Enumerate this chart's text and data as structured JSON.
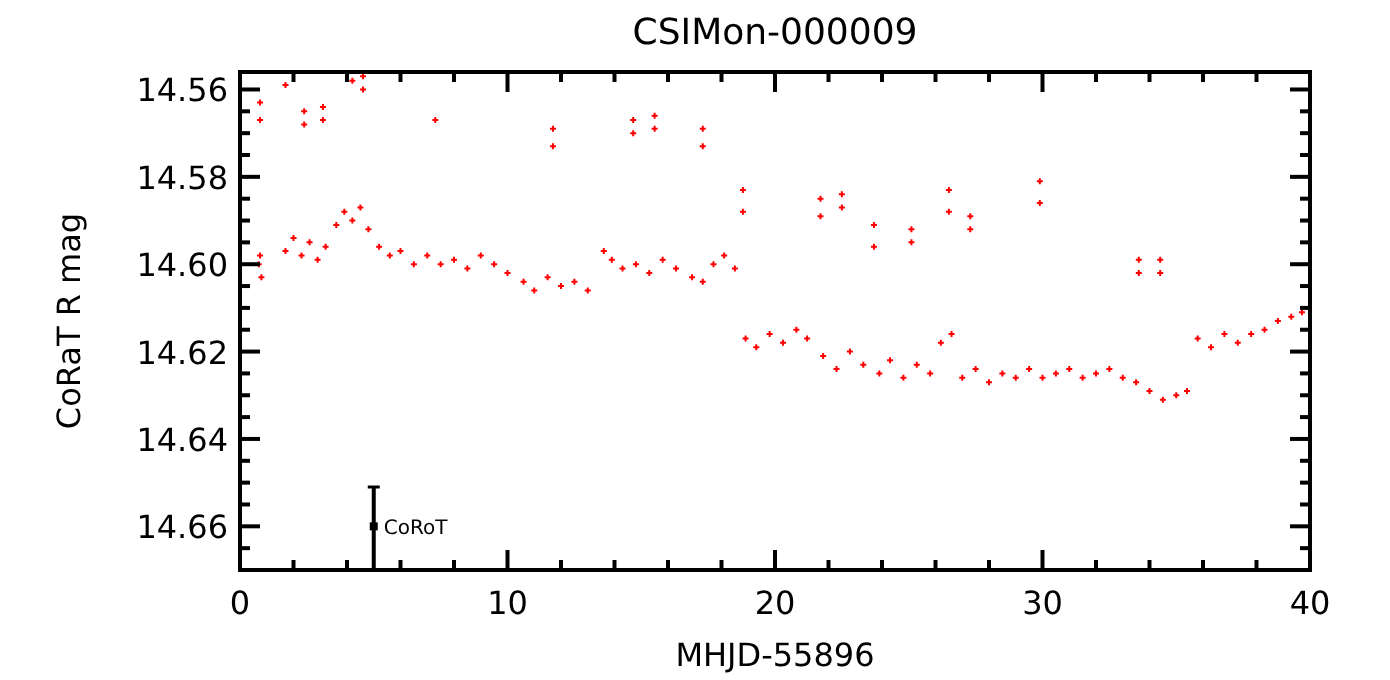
{
  "chart_data": {
    "type": "scatter",
    "title": "CSIMon-000009",
    "xlabel": "MHJD-55896",
    "ylabel": "CoRaT R mag",
    "xlim": [
      0,
      40
    ],
    "xticks": [
      0,
      {
        "value": 2,
        "label": null
      },
      {
        "value": 4,
        "label": null
      },
      {
        "value": 6,
        "label": null
      },
      {
        "value": 8,
        "label": null
      },
      10,
      {
        "value": 12,
        "label": null
      },
      {
        "value": 14,
        "label": null
      },
      {
        "value": 16,
        "label": null
      },
      {
        "value": 18,
        "label": null
      },
      20,
      {
        "value": 22,
        "label": null
      },
      {
        "value": 24,
        "label": null
      },
      {
        "value": 26,
        "label": null
      },
      {
        "value": 28,
        "label": null
      },
      30,
      {
        "value": 32,
        "label": null
      },
      {
        "value": 34,
        "label": null
      },
      {
        "value": 36,
        "label": null
      },
      {
        "value": 38,
        "label": null
      },
      40
    ],
    "ylim": [
      14.67,
      14.556
    ],
    "yticks": [
      14.56,
      {
        "value": 14.565,
        "label": null
      },
      {
        "value": 14.57,
        "label": null
      },
      {
        "value": 14.575,
        "label": null
      },
      14.58,
      {
        "value": 14.585,
        "label": null
      },
      {
        "value": 14.59,
        "label": null
      },
      {
        "value": 14.595,
        "label": null
      },
      {
        "value": 14.6,
        "label": "14.60"
      },
      {
        "value": 14.605,
        "label": null
      },
      {
        "value": 14.61,
        "label": null
      },
      {
        "value": 14.615,
        "label": null
      },
      14.62,
      {
        "value": 14.625,
        "label": null
      },
      {
        "value": 14.63,
        "label": null
      },
      {
        "value": 14.635,
        "label": null
      },
      14.64,
      {
        "value": 14.645,
        "label": null
      },
      {
        "value": 14.65,
        "label": null
      },
      {
        "value": 14.655,
        "label": null
      },
      14.66,
      {
        "value": 14.665,
        "label": null
      }
    ],
    "grid": false,
    "annotations": [
      {
        "text": "CoRoT",
        "x": 5,
        "y": 14.66
      }
    ],
    "series": [
      {
        "color": "#ff0000",
        "marker": "cross",
        "x": [
          0.7,
          0.8,
          0.75,
          1.7,
          2.0,
          2.3,
          2.6,
          2.9,
          3.2,
          3.6,
          3.9,
          4.2,
          4.5,
          4.8,
          5.2,
          5.6,
          6.0,
          6.5,
          7.0,
          7.5,
          8.0,
          8.5,
          9.0,
          9.5,
          10.0,
          10.6,
          11.0,
          11.5,
          12.0,
          12.5,
          13.0,
          13.6,
          13.9,
          14.3,
          14.8,
          15.3,
          15.8,
          16.3,
          16.9,
          17.3,
          17.7,
          18.1,
          18.5,
          18.9,
          19.3,
          19.8,
          20.3,
          20.8,
          21.2,
          21.8,
          22.3,
          22.8,
          23.3,
          23.9,
          24.3,
          24.8,
          25.3,
          25.8,
          26.2,
          26.6,
          27.0,
          27.5,
          28.0,
          28.5,
          29.0,
          29.5,
          30.0,
          30.5,
          31.0,
          31.5,
          32.0,
          32.5,
          33.0,
          33.5,
          34.0,
          34.5,
          35.0,
          35.4,
          35.8,
          36.3,
          36.8,
          37.3,
          37.8,
          38.3,
          38.8,
          39.3,
          39.7,
          0.75,
          0.75,
          1.7,
          2.4,
          2.4,
          3.1,
          3.1,
          4.2,
          4.6,
          4.6,
          7.3,
          11.7,
          11.7,
          14.7,
          14.7,
          15.5,
          15.5,
          17.3,
          17.3,
          18.8,
          18.8,
          21.7,
          21.7,
          22.5,
          22.5,
          23.7,
          23.7,
          25.1,
          25.1,
          26.5,
          26.5,
          27.3,
          27.3,
          29.9,
          29.9,
          33.6,
          33.6,
          34.4,
          34.4
        ],
        "values": [
          14.6,
          14.603,
          14.598,
          14.597,
          14.594,
          14.598,
          14.595,
          14.599,
          14.596,
          14.591,
          14.588,
          14.59,
          14.587,
          14.592,
          14.596,
          14.598,
          14.597,
          14.6,
          14.598,
          14.6,
          14.599,
          14.601,
          14.598,
          14.6,
          14.602,
          14.604,
          14.606,
          14.603,
          14.605,
          14.604,
          14.606,
          14.597,
          14.599,
          14.601,
          14.6,
          14.602,
          14.599,
          14.601,
          14.603,
          14.604,
          14.6,
          14.598,
          14.601,
          14.617,
          14.619,
          14.616,
          14.618,
          14.615,
          14.617,
          14.621,
          14.624,
          14.62,
          14.623,
          14.625,
          14.622,
          14.626,
          14.623,
          14.625,
          14.618,
          14.616,
          14.626,
          14.624,
          14.627,
          14.625,
          14.626,
          14.624,
          14.626,
          14.625,
          14.624,
          14.626,
          14.625,
          14.624,
          14.626,
          14.627,
          14.629,
          14.631,
          14.63,
          14.629,
          14.617,
          14.619,
          14.616,
          14.618,
          14.616,
          14.615,
          14.613,
          14.612,
          14.611,
          14.563,
          14.567,
          14.559,
          14.565,
          14.568,
          14.564,
          14.567,
          14.558,
          14.557,
          14.56,
          14.567,
          14.569,
          14.573,
          14.567,
          14.57,
          14.566,
          14.569,
          14.569,
          14.573,
          14.583,
          14.588,
          14.585,
          14.589,
          14.584,
          14.587,
          14.591,
          14.596,
          14.592,
          14.595,
          14.583,
          14.588,
          14.589,
          14.592,
          14.581,
          14.586,
          14.599,
          14.602,
          14.599,
          14.602
        ]
      },
      {
        "color": "#000000",
        "marker": "square",
        "x": [
          5
        ],
        "values": [
          14.66
        ],
        "errors": [
          [
            14.651,
            14.67
          ]
        ]
      }
    ]
  }
}
